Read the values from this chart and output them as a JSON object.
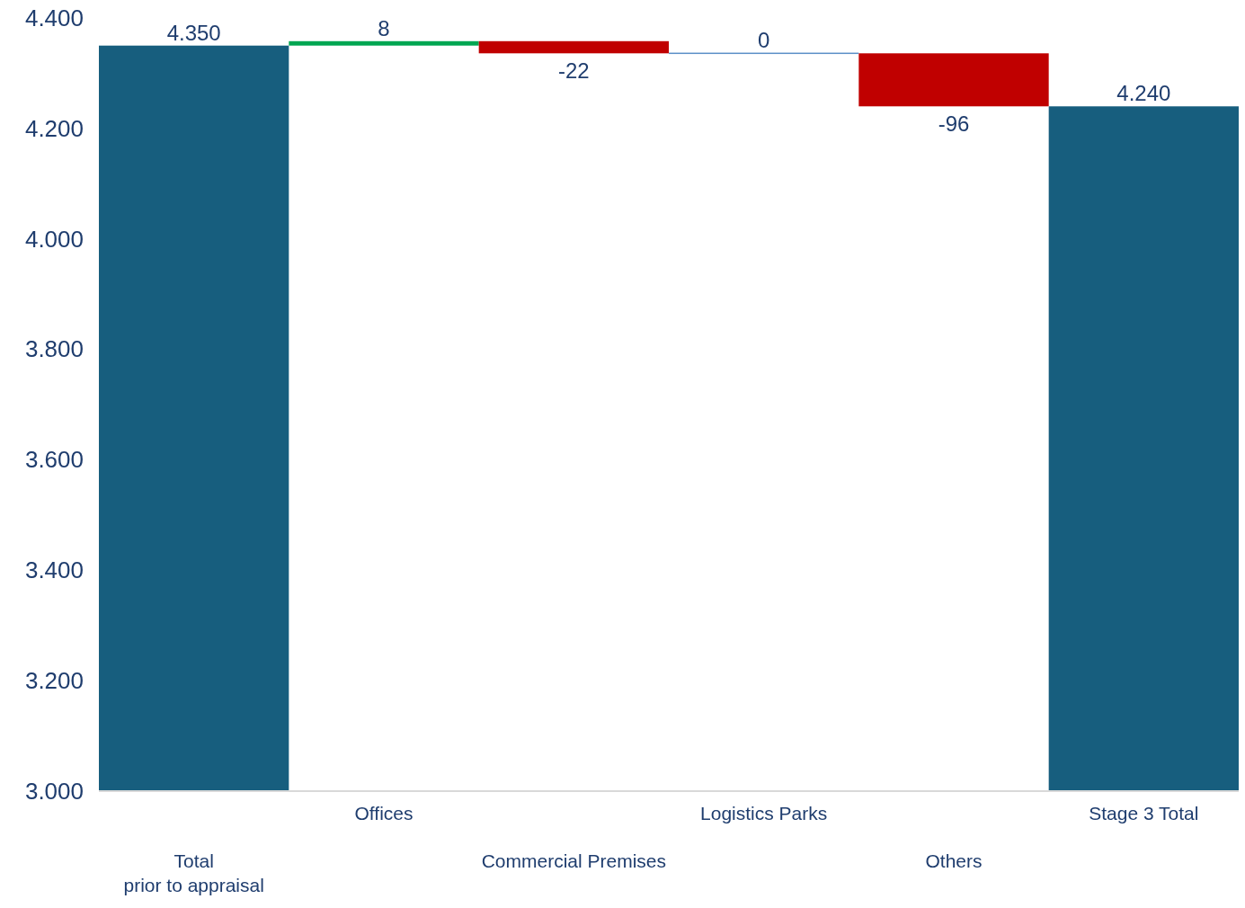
{
  "chart_data": {
    "type": "bar",
    "categories": [
      "Total\nprior to appraisal",
      "Offices",
      "Commercial Premises",
      "Logistics Parks",
      "Others",
      "Stage 3 Total"
    ],
    "values": [
      4350,
      8,
      -22,
      0,
      -96,
      4240
    ],
    "base": [
      null,
      4350,
      4358,
      4336,
      4336,
      null
    ],
    "colors": [
      "#175e7e",
      "#00a651",
      "#c00000",
      "#5b8fc7",
      "#c00000",
      "#175e7e"
    ],
    "value_labels": [
      "4.350",
      "8",
      "-22",
      "0",
      "-96",
      "4.240"
    ],
    "ylim": [
      3000,
      4400
    ],
    "yticks": [
      {
        "value": 3000,
        "label": "3.000"
      },
      {
        "value": 3200,
        "label": "3.200"
      },
      {
        "value": 3400,
        "label": "3.400"
      },
      {
        "value": 3600,
        "label": "3.600"
      },
      {
        "value": 3800,
        "label": "3.800"
      },
      {
        "value": 4000,
        "label": "4.000"
      },
      {
        "value": 4200,
        "label": "4.200"
      },
      {
        "value": 4400,
        "label": "4.400"
      }
    ]
  }
}
